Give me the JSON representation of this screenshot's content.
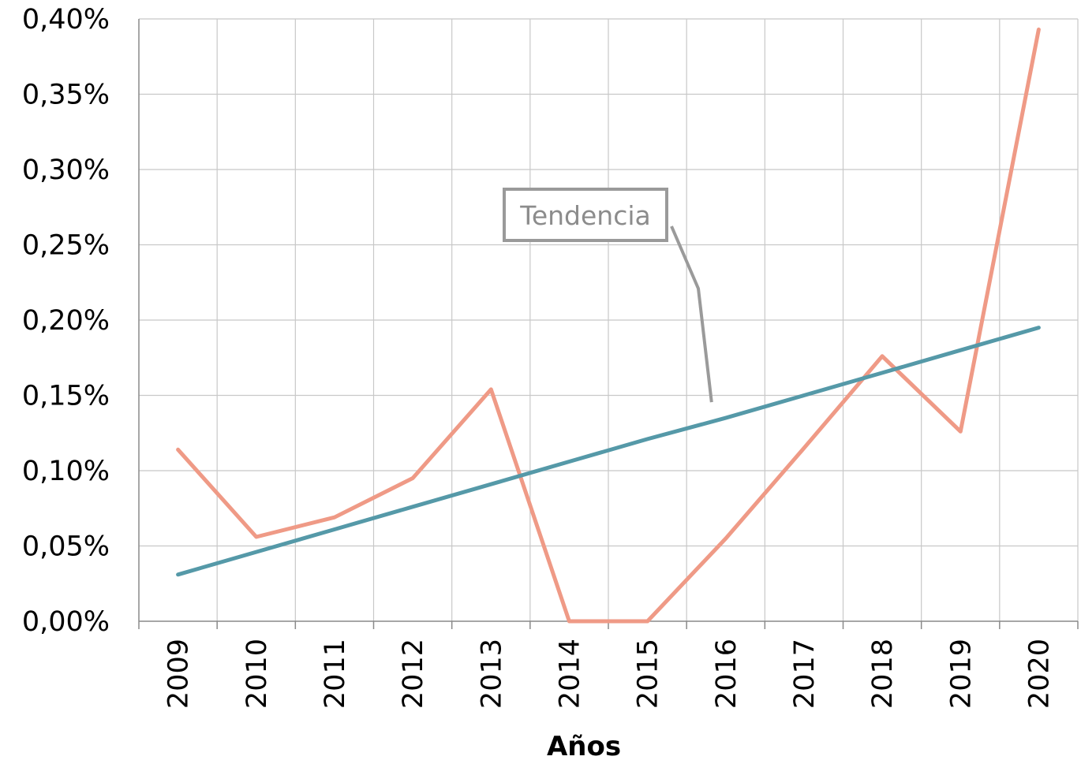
{
  "chart_data": {
    "type": "line",
    "title": "",
    "xlabel": "Años",
    "ylabel": "",
    "categories": [
      "2009",
      "2010",
      "2011",
      "2012",
      "2013",
      "2014",
      "2015",
      "2016",
      "2017",
      "2018",
      "2019",
      "2020"
    ],
    "y_ticks": [
      "0,00%",
      "0,05%",
      "0,10%",
      "0,15%",
      "0,20%",
      "0,25%",
      "0,30%",
      "0,35%",
      "0,40%"
    ],
    "ylim": [
      0,
      0.4
    ],
    "y_unit": "%",
    "grid": true,
    "series": [
      {
        "values": [
          0.114,
          0.056,
          0.069,
          0.095,
          0.154,
          0.0,
          0.0,
          0.055,
          0.115,
          0.176,
          0.126,
          0.393
        ],
        "color": "#ef9a86"
      },
      {
        "values": [
          0.031,
          0.046,
          0.061,
          0.076,
          0.091,
          0.106,
          0.121,
          0.135,
          0.15,
          0.165,
          0.18,
          0.195
        ],
        "color": "#5599a8"
      }
    ],
    "annotations": [
      {
        "text": "Tendencia",
        "target_series": 1,
        "target_category": "2016",
        "color": "#9a9a9a"
      }
    ]
  }
}
